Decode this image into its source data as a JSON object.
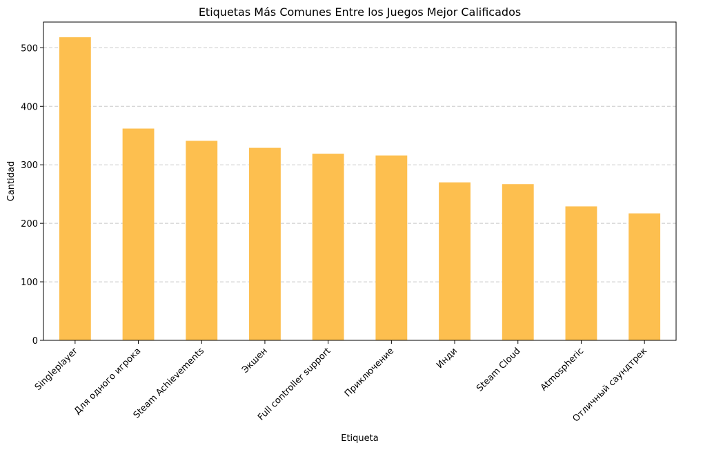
{
  "chart_data": {
    "type": "bar",
    "title": "Etiquetas Más Comunes Entre los Juegos Mejor Calificados",
    "xlabel": "Etiqueta",
    "ylabel": "Cantidad",
    "categories": [
      "Singleplayer",
      "Для одного игрока",
      "Steam Achievements",
      "Экшен",
      "Full controller support",
      "Приключение",
      "Инди",
      "Steam Cloud",
      "Atmospheric",
      "Отличный саундтрек"
    ],
    "values": [
      518,
      362,
      341,
      329,
      319,
      316,
      270,
      267,
      229,
      217
    ],
    "ylim": [
      0,
      544
    ],
    "yticks": [
      0,
      100,
      200,
      300,
      400,
      500
    ],
    "bar_color": "#fdbf4f",
    "grid": "y-dashed",
    "x_tick_rotation": 45
  }
}
